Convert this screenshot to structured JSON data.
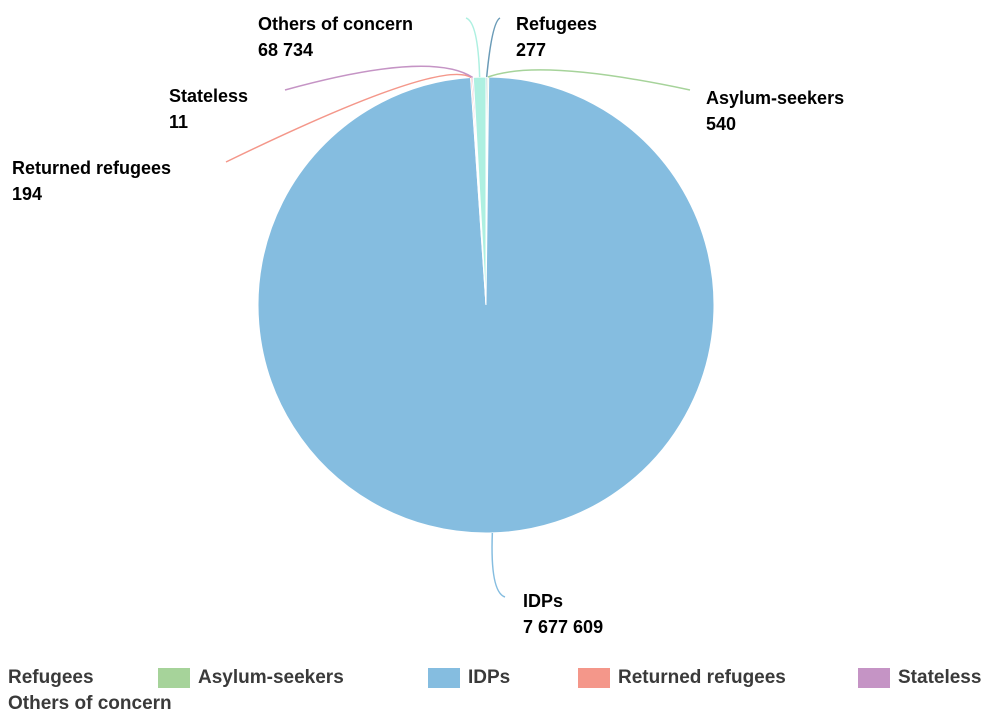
{
  "chart_data": {
    "type": "pie",
    "title": "",
    "slices": [
      {
        "name": "Refugees",
        "value": 277,
        "label": "277",
        "color": "#6a9bb7"
      },
      {
        "name": "Asylum-seekers",
        "value": 540,
        "label": "540",
        "color": "#a6d39a"
      },
      {
        "name": "IDPs",
        "value": 7677609,
        "label": "7 677 609",
        "color": "#85bde0"
      },
      {
        "name": "Returned refugees",
        "value": 194,
        "label": "194",
        "color": "#f4978a"
      },
      {
        "name": "Stateless",
        "value": 11,
        "label": "11",
        "color": "#c594c5"
      },
      {
        "name": "Others of concern",
        "value": 68734,
        "label": "68 734",
        "color": "#aef0e1"
      }
    ],
    "legend_position": "bottom"
  }
}
